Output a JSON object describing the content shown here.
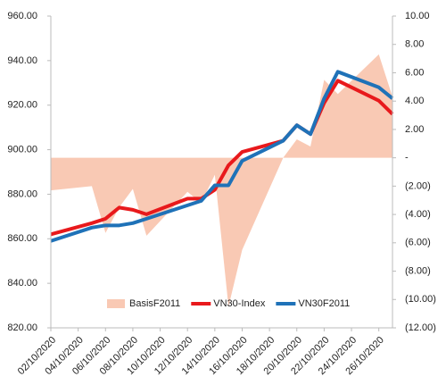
{
  "chart_data": {
    "type": "combo",
    "x": [
      "02/10/2020",
      "05/10/2020",
      "06/10/2020",
      "07/10/2020",
      "08/10/2020",
      "09/10/2020",
      "12/10/2020",
      "13/10/2020",
      "14/10/2020",
      "15/10/2020",
      "16/10/2020",
      "19/10/2020",
      "20/10/2020",
      "21/10/2020",
      "22/10/2020",
      "23/10/2020",
      "26/10/2020",
      "27/10/2020"
    ],
    "xticks": [
      "02/10/2020",
      "04/10/2020",
      "06/10/2020",
      "08/10/2020",
      "10/10/2020",
      "12/10/2020",
      "14/10/2020",
      "16/10/2020",
      "18/10/2020",
      "20/10/2020",
      "22/10/2020",
      "24/10/2020",
      "26/10/2020"
    ],
    "xlim": [
      "02/10/2020",
      "27/10/2020"
    ],
    "ylim": [
      820,
      960
    ],
    "yticks": [
      {
        "value": 960,
        "label": "960.00"
      },
      {
        "value": 940,
        "label": "940.00"
      },
      {
        "value": 920,
        "label": "920.00"
      },
      {
        "value": 900,
        "label": "900.00"
      },
      {
        "value": 880,
        "label": "880.00"
      },
      {
        "value": 860,
        "label": "860.00"
      },
      {
        "value": 840,
        "label": "840.00"
      },
      {
        "value": 820,
        "label": "820.00"
      }
    ],
    "y2lim": [
      -12,
      10
    ],
    "y2ticks": [
      {
        "value": 10,
        "label": "10.00"
      },
      {
        "value": 8,
        "label": "8.00"
      },
      {
        "value": 6,
        "label": "6.00"
      },
      {
        "value": 4,
        "label": "4.00"
      },
      {
        "value": 2,
        "label": "2.00"
      },
      {
        "value": 0,
        "label": "-"
      },
      {
        "value": -2,
        "label": "(2.00)"
      },
      {
        "value": -4,
        "label": "(4.00)"
      },
      {
        "value": -6,
        "label": "(6.00)"
      },
      {
        "value": -8,
        "label": "(8.00)"
      },
      {
        "value": -10,
        "label": "(10.00)"
      },
      {
        "value": -12,
        "label": "(12.00)"
      }
    ],
    "series": [
      {
        "name": "BasisF2011",
        "kind": "area",
        "axis": "y2",
        "color": "#f9c9b4",
        "values": [
          -2.3,
          -2.0,
          -5.3,
          -3.5,
          -2.2,
          -5.5,
          -2.4,
          -3.2,
          -1.2,
          -10.5,
          -6.5,
          0.0,
          1.3,
          0.8,
          5.5,
          4.5,
          7.3,
          4.3
        ]
      },
      {
        "name": "VN30-Index",
        "kind": "line",
        "color": "#e8191c",
        "values": [
          862,
          867,
          869,
          874,
          873,
          871,
          878,
          878,
          882,
          893,
          899,
          904,
          911,
          907,
          921,
          931,
          922,
          916
        ]
      },
      {
        "name": "VN30F2011",
        "kind": "line",
        "color": "#1f72b8",
        "values": [
          859,
          865,
          866,
          866,
          867,
          869,
          875,
          877,
          884,
          884,
          895,
          904,
          911,
          907,
          923,
          935,
          928,
          923
        ]
      }
    ],
    "legend": "bottom"
  }
}
